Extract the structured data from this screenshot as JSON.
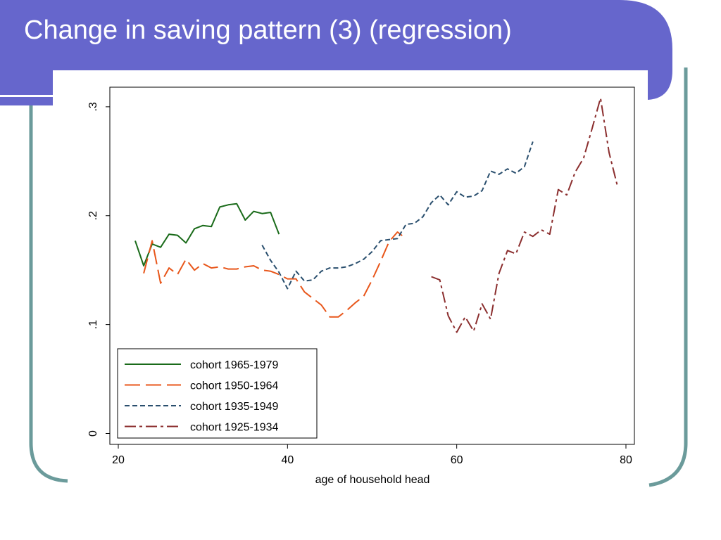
{
  "slide": {
    "title": "Change in saving pattern (3) (regression)",
    "colors": {
      "banner": "#6666cc",
      "frame": "#6b9b9b"
    }
  },
  "chart_data": {
    "type": "line",
    "title": "",
    "xlabel": "age of household head",
    "ylabel": "",
    "xlim": [
      19,
      81
    ],
    "ylim": [
      -0.01,
      0.318
    ],
    "xticks": [
      {
        "value": 20,
        "label": "20"
      },
      {
        "value": 40,
        "label": "40"
      },
      {
        "value": 60,
        "label": "60"
      },
      {
        "value": 80,
        "label": "80"
      }
    ],
    "yticks": [
      {
        "value": 0,
        "label": "0"
      },
      {
        "value": 0.1,
        "label": ".1"
      },
      {
        "value": 0.2,
        "label": ".2"
      },
      {
        "value": 0.3,
        "label": ".3"
      }
    ],
    "grid": false,
    "legend_position": "bottom-left",
    "series": [
      {
        "name": "cohort 1965-1979",
        "color": "#1a6b1a",
        "dash": "solid",
        "x": [
          22,
          23,
          24,
          25,
          26,
          27,
          28,
          29,
          30,
          31,
          32,
          33,
          34,
          35,
          36,
          37,
          38,
          39
        ],
        "y": [
          0.177,
          0.154,
          0.174,
          0.171,
          0.183,
          0.182,
          0.175,
          0.188,
          0.191,
          0.19,
          0.208,
          0.21,
          0.211,
          0.196,
          0.204,
          0.202,
          0.203,
          0.183
        ]
      },
      {
        "name": "cohort 1950-1964",
        "color": "#e8561a",
        "dash": "long",
        "x": [
          23,
          24,
          25,
          26,
          27,
          28,
          29,
          30,
          31,
          32,
          33,
          34,
          35,
          36,
          37,
          38,
          39,
          40,
          41,
          42,
          43,
          44,
          45,
          46,
          47,
          48,
          49,
          50,
          51,
          52,
          53,
          54
        ],
        "y": [
          0.147,
          0.177,
          0.138,
          0.152,
          0.146,
          0.16,
          0.15,
          0.156,
          0.152,
          0.153,
          0.151,
          0.151,
          0.153,
          0.154,
          0.15,
          0.149,
          0.146,
          0.142,
          0.142,
          0.13,
          0.124,
          0.118,
          0.107,
          0.107,
          0.113,
          0.12,
          0.126,
          0.141,
          0.158,
          0.176,
          0.185,
          0.179
        ]
      },
      {
        "name": "cohort 1935-1949",
        "color": "#2a4f6e",
        "dash": "short",
        "x": [
          37,
          38,
          39,
          40,
          41,
          42,
          43,
          44,
          45,
          46,
          47,
          48,
          49,
          50,
          51,
          52,
          53,
          54,
          55,
          56,
          57,
          58,
          59,
          60,
          61,
          62,
          63,
          64,
          65,
          66,
          67,
          68,
          69
        ],
        "y": [
          0.173,
          0.159,
          0.148,
          0.133,
          0.149,
          0.14,
          0.141,
          0.149,
          0.152,
          0.152,
          0.153,
          0.156,
          0.16,
          0.167,
          0.177,
          0.178,
          0.179,
          0.192,
          0.193,
          0.199,
          0.212,
          0.219,
          0.21,
          0.222,
          0.217,
          0.218,
          0.223,
          0.241,
          0.238,
          0.243,
          0.239,
          0.245,
          0.268
        ]
      },
      {
        "name": "cohort 1925-1934",
        "color": "#8b2e2e",
        "dash": "dashdot",
        "x": [
          57,
          58,
          59,
          60,
          61,
          62,
          63,
          64,
          65,
          66,
          67,
          68,
          69,
          70,
          71,
          72,
          73,
          74,
          75,
          76,
          77,
          78,
          79
        ],
        "y": [
          0.144,
          0.141,
          0.108,
          0.093,
          0.107,
          0.094,
          0.119,
          0.105,
          0.147,
          0.168,
          0.165,
          0.185,
          0.181,
          0.187,
          0.183,
          0.224,
          0.219,
          0.24,
          0.253,
          0.28,
          0.308,
          0.258,
          0.227
        ]
      }
    ]
  }
}
